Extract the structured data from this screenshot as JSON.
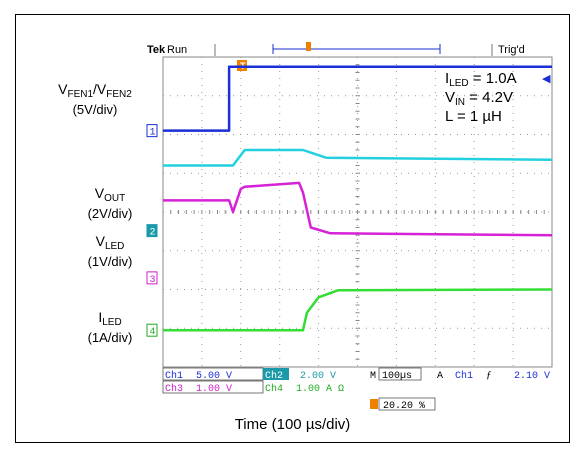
{
  "header": {
    "brand": "Tek",
    "run": "Run",
    "trig": "Trig'd",
    "trigger_marker": "T"
  },
  "channel_labels": [
    {
      "main": "V",
      "sub": "FEN1",
      "mid": "/V",
      "sub2": "FEN2",
      "scale": "(5V/div)",
      "marker": "1",
      "color": "#1a2fd6"
    },
    {
      "main": "V",
      "sub": "OUT",
      "scale": "(2V/div)",
      "marker": "2",
      "color": "#1a9aa8"
    },
    {
      "main": "V",
      "sub": "LED",
      "scale": "(1V/div)",
      "marker": "3",
      "color": "#cc22cc"
    },
    {
      "main": "I",
      "sub": "LED",
      "scale": "(1A/div)",
      "marker": "4",
      "color": "#22aa22"
    }
  ],
  "annotations": [
    {
      "main": "I",
      "sub": "LED",
      "rest": " = 1.0A"
    },
    {
      "main": "V",
      "sub": "IN",
      "rest": " = 4.2V"
    },
    {
      "main": "L = 1 µH",
      "sub": "",
      "rest": ""
    }
  ],
  "readout": {
    "ch1": "Ch1",
    "ch1_val": "5.00 V",
    "ch2": "Ch2",
    "ch2_val": "2.00 V",
    "ch3": "Ch3",
    "ch3_val": "1.00 V",
    "ch4": "Ch4",
    "ch4_val": "1.00 A Ω",
    "m": "M",
    "timebase": "100µs",
    "a": "A",
    "trig_ch": "Ch1",
    "slope": "ƒ",
    "trig_level": "2.10 V",
    "trigger_pos": "20.20 %"
  },
  "chart_data": {
    "type": "line",
    "xlabel": "Time (100 µs/div)",
    "x_divisions": 10,
    "y_divisions": 8,
    "grid": true,
    "series": [
      {
        "name": "CH1",
        "color": "#1a2fd6",
        "x": [
          0,
          1.7,
          1.7,
          10
        ],
        "y": [
          2.1,
          2.1,
          3.75,
          3.75
        ]
      },
      {
        "name": "CH2",
        "color": "#22d0e0",
        "x": [
          0,
          1.8,
          2.1,
          3.6,
          4.2,
          10
        ],
        "y": [
          1.2,
          1.2,
          1.6,
          1.6,
          1.4,
          1.35
        ]
      },
      {
        "name": "CH3",
        "color": "#d622d6",
        "x": [
          0,
          1.7,
          1.8,
          2.0,
          2.1,
          3.5,
          3.6,
          3.8,
          4.3,
          10
        ],
        "y": [
          0.3,
          0.3,
          0.0,
          0.6,
          0.65,
          0.75,
          0.5,
          -0.4,
          -0.55,
          -0.6
        ]
      },
      {
        "name": "CH4",
        "color": "#33dd33",
        "x": [
          0,
          3.6,
          3.7,
          4.0,
          4.5,
          10
        ],
        "y": [
          -3.05,
          -3.05,
          -2.6,
          -2.2,
          -2.02,
          -2.0
        ]
      }
    ]
  }
}
